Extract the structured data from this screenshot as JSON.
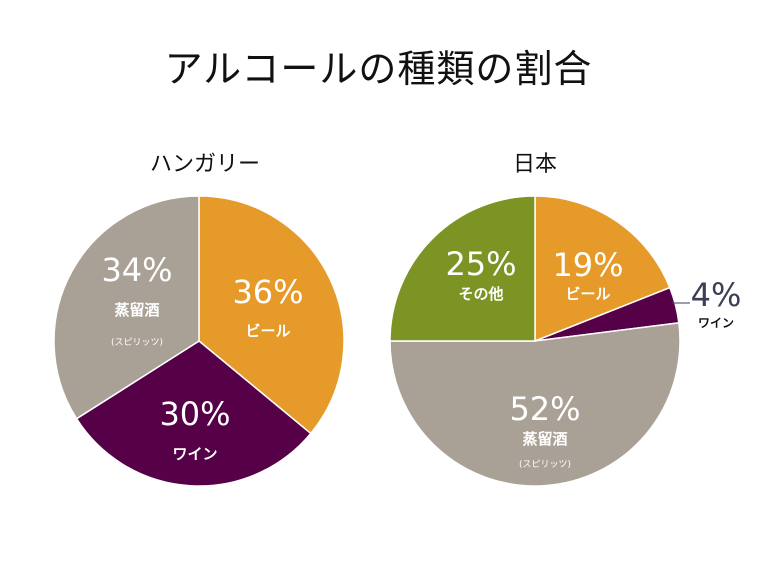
{
  "title": "アルコールの種類の割合",
  "chart_data": [
    {
      "type": "pie",
      "title": "ハンガリー",
      "slices": [
        {
          "label": "ビール",
          "value": 36,
          "pct_text": "36%",
          "color": "#e59a2a"
        },
        {
          "label": "ワイン",
          "value": 30,
          "pct_text": "30%",
          "color": "#560048"
        },
        {
          "label": "蒸留酒",
          "sublabel": "(スピリッツ)",
          "value": 34,
          "pct_text": "34%",
          "color": "#a9a096"
        }
      ]
    },
    {
      "type": "pie",
      "title": "日本",
      "slices": [
        {
          "label": "ビール",
          "value": 19,
          "pct_text": "19%",
          "color": "#e59a2a"
        },
        {
          "label": "ワイン",
          "value": 4,
          "pct_text": "4%",
          "color": "#560048"
        },
        {
          "label": "蒸留酒",
          "sublabel": "(スピリッツ)",
          "value": 52,
          "pct_text": "52%",
          "color": "#a9a096"
        },
        {
          "label": "その他",
          "value": 25,
          "pct_text": "25%",
          "color": "#7b9424"
        }
      ]
    }
  ]
}
